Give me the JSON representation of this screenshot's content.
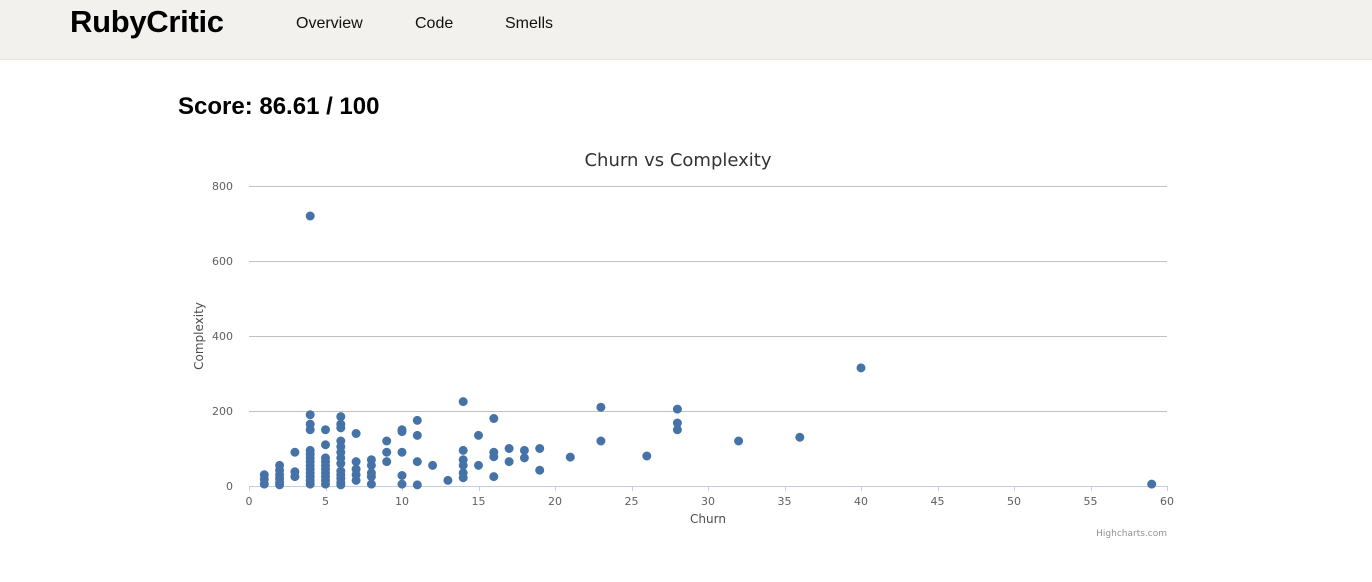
{
  "app": {
    "brand": "RubyCritic",
    "nav": [
      "Overview",
      "Code",
      "Smells"
    ]
  },
  "score": {
    "label": "Score: 86.61 / 100"
  },
  "credits": "Highcharts.com",
  "colors": {
    "point": "#4572a7",
    "grid": "#c0c0c0",
    "topbar": "#f2f1ee"
  },
  "chart_data": {
    "type": "scatter",
    "title": "Churn vs Complexity",
    "xlabel": "Churn",
    "ylabel": "Complexity",
    "xlim": [
      0,
      60
    ],
    "ylim": [
      0,
      800
    ],
    "x_ticks": [
      0,
      5,
      10,
      15,
      20,
      25,
      30,
      35,
      40,
      45,
      50,
      55,
      60
    ],
    "y_ticks": [
      0,
      200,
      400,
      600,
      800
    ],
    "grid": "horizontal",
    "legend": "none",
    "series": [
      {
        "points": [
          [
            1,
            5
          ],
          [
            1,
            18
          ],
          [
            1,
            30
          ],
          [
            2,
            3
          ],
          [
            2,
            10
          ],
          [
            2,
            20
          ],
          [
            2,
            30
          ],
          [
            2,
            42
          ],
          [
            2,
            55
          ],
          [
            3,
            25
          ],
          [
            3,
            38
          ],
          [
            3,
            90
          ],
          [
            4,
            720
          ],
          [
            4,
            190
          ],
          [
            4,
            165
          ],
          [
            4,
            150
          ],
          [
            4,
            95
          ],
          [
            4,
            85
          ],
          [
            4,
            75
          ],
          [
            4,
            65
          ],
          [
            4,
            55
          ],
          [
            4,
            45
          ],
          [
            4,
            35
          ],
          [
            4,
            25
          ],
          [
            4,
            15
          ],
          [
            4,
            5
          ],
          [
            5,
            150
          ],
          [
            5,
            110
          ],
          [
            5,
            75
          ],
          [
            5,
            65
          ],
          [
            5,
            55
          ],
          [
            5,
            45
          ],
          [
            5,
            35
          ],
          [
            5,
            25
          ],
          [
            5,
            15
          ],
          [
            5,
            5
          ],
          [
            6,
            185
          ],
          [
            6,
            165
          ],
          [
            6,
            155
          ],
          [
            6,
            120
          ],
          [
            6,
            105
          ],
          [
            6,
            90
          ],
          [
            6,
            75
          ],
          [
            6,
            60
          ],
          [
            6,
            40
          ],
          [
            6,
            30
          ],
          [
            6,
            20
          ],
          [
            6,
            10
          ],
          [
            6,
            3
          ],
          [
            7,
            140
          ],
          [
            7,
            65
          ],
          [
            7,
            45
          ],
          [
            7,
            30
          ],
          [
            7,
            15
          ],
          [
            8,
            70
          ],
          [
            8,
            55
          ],
          [
            8,
            35
          ],
          [
            8,
            25
          ],
          [
            8,
            5
          ],
          [
            9,
            120
          ],
          [
            9,
            90
          ],
          [
            9,
            65
          ],
          [
            10,
            150
          ],
          [
            10,
            145
          ],
          [
            10,
            90
          ],
          [
            10,
            28
          ],
          [
            10,
            5
          ],
          [
            11,
            175
          ],
          [
            11,
            135
          ],
          [
            11,
            65
          ],
          [
            11,
            3
          ],
          [
            12,
            55
          ],
          [
            13,
            15
          ],
          [
            14,
            225
          ],
          [
            14,
            95
          ],
          [
            14,
            70
          ],
          [
            14,
            55
          ],
          [
            14,
            35
          ],
          [
            14,
            22
          ],
          [
            15,
            135
          ],
          [
            15,
            55
          ],
          [
            16,
            180
          ],
          [
            16,
            90
          ],
          [
            16,
            78
          ],
          [
            16,
            25
          ],
          [
            17,
            100
          ],
          [
            17,
            65
          ],
          [
            18,
            95
          ],
          [
            18,
            75
          ],
          [
            19,
            100
          ],
          [
            19,
            42
          ],
          [
            21,
            77
          ],
          [
            23,
            210
          ],
          [
            23,
            120
          ],
          [
            26,
            80
          ],
          [
            28,
            205
          ],
          [
            28,
            168
          ],
          [
            28,
            150
          ],
          [
            32,
            120
          ],
          [
            36,
            130
          ],
          [
            40,
            315
          ],
          [
            59,
            5
          ]
        ]
      }
    ]
  }
}
